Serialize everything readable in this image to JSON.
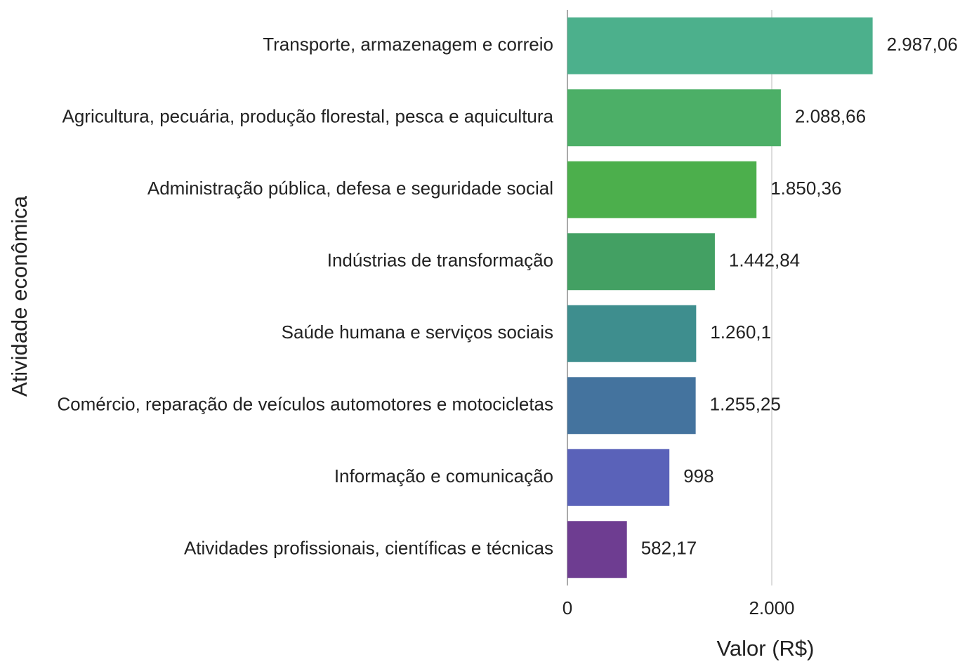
{
  "chart_data": {
    "type": "bar",
    "orientation": "horizontal",
    "xlabel": "Valor (R$)",
    "ylabel": "Atividade econômica",
    "categories": [
      "Transporte, armazenagem e correio",
      "Agricultura, pecuária, produção florestal, pesca e aquicultura",
      "Administração pública, defesa e seguridade social",
      "Indústrias de transformação",
      "Saúde humana e serviços sociais",
      "Comércio, reparação de veículos automotores e motocicletas",
      "Informação e comunicação",
      "Atividades profissionais, científicas e técnicas"
    ],
    "values": [
      2987.06,
      2088.66,
      1850.36,
      1442.84,
      1260.1,
      1255.25,
      998,
      582.17
    ],
    "value_labels": [
      "2.987,06",
      "2.088,66",
      "1.850,36",
      "1.442,84",
      "1.260,1",
      "1.255,25",
      "998",
      "582,17"
    ],
    "colors": [
      "#4cb08c",
      "#4caf67",
      "#4caf4c",
      "#43a063",
      "#3e8e8e",
      "#44739e",
      "#5a62b9",
      "#6e3d91"
    ],
    "xlim": [
      0,
      3000
    ],
    "xticks": [
      0,
      {
        "value": 2000,
        "label": "2.000"
      }
    ],
    "grid": true
  }
}
